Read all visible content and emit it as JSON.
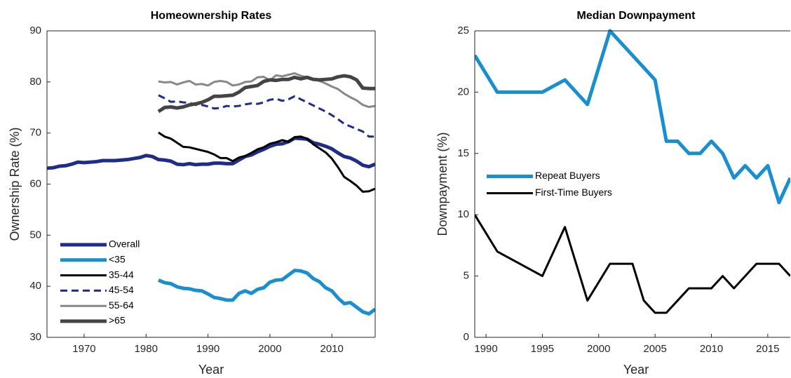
{
  "chart_data": [
    {
      "type": "line",
      "title": "Homeownership Rates",
      "x_label": "Year",
      "y_label": "Ownership Rate (%)",
      "x": [
        1964,
        1965,
        1966,
        1967,
        1968,
        1969,
        1970,
        1971,
        1972,
        1973,
        1974,
        1975,
        1976,
        1977,
        1978,
        1979,
        1980,
        1981,
        1982,
        1983,
        1984,
        1985,
        1986,
        1987,
        1988,
        1989,
        1990,
        1991,
        1992,
        1993,
        1994,
        1995,
        1996,
        1997,
        1998,
        1999,
        2000,
        2001,
        2002,
        2003,
        2004,
        2005,
        2006,
        2007,
        2008,
        2009,
        2010,
        2011,
        2012,
        2013,
        2014,
        2015,
        2016,
        2017
      ],
      "series": [
        {
          "name": "Overall",
          "color": "#1f2d8a",
          "style": "solid",
          "linewidth": 5,
          "values": [
            63.1,
            63.2,
            63.5,
            63.6,
            63.9,
            64.3,
            64.2,
            64.3,
            64.4,
            64.6,
            64.6,
            64.6,
            64.7,
            64.8,
            65.0,
            65.2,
            65.6,
            65.4,
            64.8,
            64.7,
            64.5,
            63.9,
            63.8,
            64.0,
            63.8,
            63.9,
            63.9,
            64.1,
            64.1,
            64.0,
            64.0,
            64.7,
            65.4,
            65.7,
            66.3,
            66.8,
            67.4,
            67.8,
            67.9,
            68.3,
            69.0,
            68.9,
            68.8,
            68.1,
            67.8,
            67.4,
            66.9,
            66.1,
            65.4,
            65.1,
            64.5,
            63.7,
            63.4,
            63.9
          ]
        },
        {
          "name": "<35",
          "color": "#1a8fd0",
          "style": "solid",
          "linewidth": 5,
          "values": [
            null,
            null,
            null,
            null,
            null,
            null,
            null,
            null,
            null,
            null,
            null,
            null,
            null,
            null,
            null,
            null,
            null,
            null,
            41.2,
            40.7,
            40.5,
            39.9,
            39.6,
            39.5,
            39.2,
            39.1,
            38.5,
            37.8,
            37.6,
            37.3,
            37.3,
            38.6,
            39.1,
            38.6,
            39.4,
            39.7,
            40.8,
            41.2,
            41.3,
            42.2,
            43.1,
            43.0,
            42.6,
            41.5,
            40.9,
            39.7,
            39.1,
            37.7,
            36.6,
            36.8,
            35.9,
            35.0,
            34.6,
            35.5
          ]
        },
        {
          "name": "35-44",
          "color": "#000000",
          "style": "solid",
          "linewidth": 3,
          "values": [
            null,
            null,
            null,
            null,
            null,
            null,
            null,
            null,
            null,
            null,
            null,
            null,
            null,
            null,
            null,
            null,
            null,
            null,
            70.1,
            69.3,
            68.9,
            68.1,
            67.3,
            67.2,
            66.9,
            66.6,
            66.3,
            65.8,
            65.1,
            65.1,
            64.5,
            65.2,
            65.5,
            66.1,
            66.8,
            67.2,
            67.9,
            68.2,
            68.6,
            68.3,
            69.2,
            69.3,
            68.9,
            67.8,
            67.0,
            66.2,
            65.0,
            63.3,
            61.4,
            60.6,
            59.7,
            58.5,
            58.6,
            59.1
          ]
        },
        {
          "name": "45-54",
          "color": "#1f2d8a",
          "style": "dashed",
          "linewidth": 3,
          "values": [
            null,
            null,
            null,
            null,
            null,
            null,
            null,
            null,
            null,
            null,
            null,
            null,
            null,
            null,
            null,
            null,
            null,
            null,
            77.4,
            76.8,
            76.1,
            76.2,
            76.0,
            75.9,
            75.5,
            75.5,
            75.2,
            74.8,
            74.9,
            75.3,
            75.2,
            75.3,
            75.6,
            75.8,
            75.7,
            76.0,
            76.5,
            76.7,
            76.3,
            76.6,
            77.2,
            76.6,
            76.0,
            75.4,
            74.8,
            74.2,
            73.5,
            72.7,
            71.8,
            71.3,
            70.8,
            70.3,
            69.3,
            69.3
          ]
        },
        {
          "name": "55-64",
          "color": "#888888",
          "style": "solid",
          "linewidth": 3,
          "values": [
            null,
            null,
            null,
            null,
            null,
            null,
            null,
            null,
            null,
            null,
            null,
            null,
            null,
            null,
            null,
            null,
            null,
            null,
            80.1,
            79.9,
            80.0,
            79.5,
            79.9,
            80.2,
            79.5,
            79.6,
            79.3,
            80.0,
            80.2,
            80.0,
            79.3,
            79.5,
            80.0,
            80.1,
            80.9,
            81.0,
            80.3,
            81.3,
            81.1,
            81.4,
            81.7,
            81.2,
            80.9,
            80.6,
            80.2,
            79.7,
            79.1,
            78.6,
            77.7,
            77.0,
            76.4,
            75.5,
            75.1,
            75.3
          ]
        },
        {
          "name": ">65",
          "color": "#444444",
          "style": "solid",
          "linewidth": 5,
          "values": [
            null,
            null,
            null,
            null,
            null,
            null,
            null,
            null,
            null,
            null,
            null,
            null,
            null,
            null,
            null,
            null,
            null,
            null,
            74.2,
            75.0,
            75.1,
            74.9,
            75.1,
            75.5,
            75.7,
            76.0,
            76.5,
            77.2,
            77.2,
            77.3,
            77.4,
            78.0,
            78.9,
            79.1,
            79.3,
            80.1,
            80.4,
            80.3,
            80.5,
            80.5,
            80.9,
            80.6,
            80.9,
            80.5,
            80.4,
            80.5,
            80.6,
            81.0,
            81.2,
            81.0,
            80.4,
            78.8,
            78.7,
            78.7
          ]
        }
      ],
      "xlim": [
        1964,
        2017
      ],
      "xticks": [
        1970,
        1980,
        1990,
        2000,
        2010
      ],
      "ylim": [
        30,
        90
      ],
      "yticks": [
        30,
        40,
        50,
        60,
        70,
        80,
        90
      ],
      "legend": "lower left"
    },
    {
      "type": "line",
      "title": "Median Downpayment",
      "x_label": "Year",
      "y_label": "Downpayment (%)",
      "x": [
        1989,
        1991,
        1995,
        1997,
        1999,
        2001,
        2003,
        2004,
        2005,
        2006,
        2007,
        2008,
        2009,
        2010,
        2011,
        2012,
        2013,
        2014,
        2015,
        2016,
        2017
      ],
      "series": [
        {
          "name": "Repeat Buyers",
          "color": "#1a8fd0",
          "style": "solid",
          "linewidth": 5,
          "values": [
            23,
            20,
            20,
            21,
            19,
            25,
            23,
            22,
            21,
            16,
            16,
            15,
            15,
            16,
            15,
            13,
            14,
            13,
            14,
            11,
            13
          ]
        },
        {
          "name": "First-Time Buyers",
          "color": "#000000",
          "style": "solid",
          "linewidth": 3,
          "values": [
            10,
            7,
            5,
            9,
            3,
            6,
            6,
            3,
            2,
            2,
            3,
            4,
            4,
            4,
            5,
            4,
            5,
            6,
            6,
            6,
            5
          ]
        }
      ],
      "xlim": [
        1989,
        2017
      ],
      "xticks": [
        1990,
        1995,
        2000,
        2005,
        2010,
        2015
      ],
      "ylim": [
        0,
        25
      ],
      "yticks": [
        0,
        5,
        10,
        15,
        20,
        25
      ],
      "legend": "center left"
    }
  ]
}
